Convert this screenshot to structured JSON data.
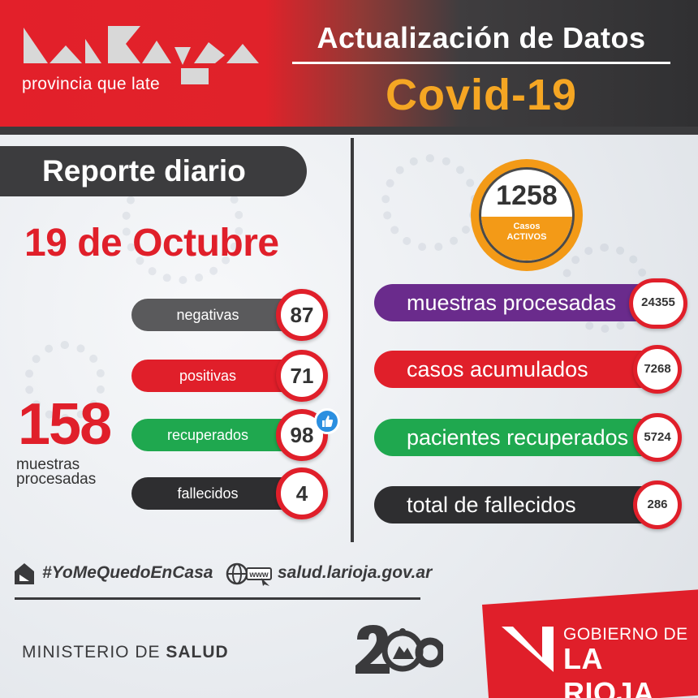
{
  "header": {
    "logo_tagline": "provincia que late",
    "title": "Actualización de Datos",
    "subtitle": "Covid-19",
    "colors": {
      "red": "#e01f2a",
      "dark": "#3a3a3c",
      "orange": "#f39a17"
    }
  },
  "left": {
    "report_title": "Reporte diario",
    "date": "19 de Octubre",
    "daily_total": "158",
    "daily_total_label_line1": "muestras",
    "daily_total_label_line2": "procesadas",
    "stats": [
      {
        "label": "negativas",
        "value": "87",
        "color": "#5a5a5c"
      },
      {
        "label": "positivas",
        "value": "71",
        "color": "#e01f2a"
      },
      {
        "label": "recuperados",
        "value": "98",
        "color": "#1fa84f"
      },
      {
        "label": "fallecidos",
        "value": "4",
        "color": "#2e2e30"
      }
    ]
  },
  "right": {
    "active_cases": "1258",
    "active_label_line1": "Casos",
    "active_label_line2": "ACTIVOS",
    "stats": [
      {
        "label": "muestras procesadas",
        "value": "24355",
        "color": "#6a2b8c"
      },
      {
        "label": "casos acumulados",
        "value": "7268",
        "color": "#e01f2a"
      },
      {
        "label": "pacientes recuperados",
        "value": "5724",
        "color": "#1fa84f"
      },
      {
        "label": "total de fallecidos",
        "value": "286",
        "color": "#2e2e30"
      }
    ]
  },
  "footer": {
    "hashtag": "#YoMeQuedoEnCasa",
    "website": "salud.larioja.gov.ar",
    "www_label": "www",
    "ministry_prefix": "MINISTERIO DE ",
    "ministry_bold": "SALUD",
    "gov_line1": "GOBIERNO DE",
    "gov_line2": "LA RIOJA"
  }
}
